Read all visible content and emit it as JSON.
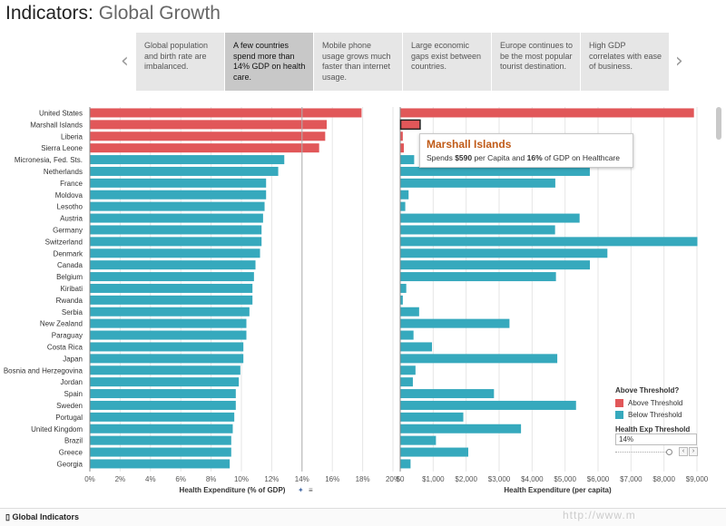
{
  "header": {
    "title_bold": "Indicators:",
    "title_light": "Global Growth"
  },
  "story": {
    "items": [
      {
        "label": "Global population and birth rate are imbalanced.",
        "active": false
      },
      {
        "label": "A few countries spend more than 14% GDP on health care.",
        "active": true
      },
      {
        "label": "Mobile phone usage grows much faster than internet usage.",
        "active": false
      },
      {
        "label": "Large economic gaps exist between countries.",
        "active": false
      },
      {
        "label": "Europe continues to be the most popular tourist destination.",
        "active": false
      },
      {
        "label": "High GDP correlates with ease of business.",
        "active": false
      }
    ]
  },
  "tooltip": {
    "title": "Marshall Islands",
    "pre": "Spends ",
    "value1": "$590",
    "mid": " per Capita and ",
    "value2": "16%",
    "post": " of GDP on Healthcare"
  },
  "legend": {
    "title": "Above Threshold?",
    "items": [
      {
        "label": "Above Threshold",
        "color": "#e15759"
      },
      {
        "label": "Below Threshold",
        "color": "#36a9bd"
      }
    ],
    "param_title": "Health Exp Threshold",
    "param_value": "14%"
  },
  "footer": {
    "workbook": "Global Indicators"
  },
  "watermark": "http://www.m",
  "colors": {
    "above": "#e15759",
    "below": "#36a9bd",
    "grid": "#e6e6e6"
  },
  "icons": {
    "prev": "chevron-left-icon",
    "next": "chevron-right-icon",
    "pin": "pin-icon",
    "sort": "sort-icon",
    "workbook": "book-icon"
  },
  "chart_data": [
    {
      "type": "bar",
      "orientation": "horizontal",
      "xlabel": "Health Expenditure (% of GDP)",
      "xlim": [
        0,
        20
      ],
      "ticks": [
        "0%",
        "2%",
        "4%",
        "6%",
        "8%",
        "10%",
        "12%",
        "14%",
        "16%",
        "18%",
        "20%"
      ],
      "reference_line": 14,
      "categories": [
        "United States",
        "Marshall Islands",
        "Liberia",
        "Sierra Leone",
        "Micronesia, Fed. Sts.",
        "Netherlands",
        "France",
        "Moldova",
        "Lesotho",
        "Austria",
        "Germany",
        "Switzerland",
        "Denmark",
        "Canada",
        "Belgium",
        "Kiribati",
        "Rwanda",
        "Serbia",
        "New Zealand",
        "Paraguay",
        "Costa Rica",
        "Japan",
        "Bosnia and Herzegovina",
        "Jordan",
        "Spain",
        "Sweden",
        "Portugal",
        "United Kingdom",
        "Brazil",
        "Greece",
        "Georgia"
      ],
      "values": [
        17.9,
        15.6,
        15.5,
        15.1,
        12.8,
        12.4,
        11.6,
        11.6,
        11.5,
        11.4,
        11.3,
        11.3,
        11.2,
        10.9,
        10.8,
        10.7,
        10.7,
        10.5,
        10.3,
        10.3,
        10.1,
        10.1,
        9.9,
        9.8,
        9.6,
        9.6,
        9.5,
        9.4,
        9.3,
        9.3,
        9.2
      ],
      "above_threshold": [
        true,
        true,
        true,
        true,
        false,
        false,
        false,
        false,
        false,
        false,
        false,
        false,
        false,
        false,
        false,
        false,
        false,
        false,
        false,
        false,
        false,
        false,
        false,
        false,
        false,
        false,
        false,
        false,
        false,
        false,
        false
      ]
    },
    {
      "type": "bar",
      "orientation": "horizontal",
      "xlabel": "Health Expenditure (per capita)",
      "xlim": [
        0,
        9000
      ],
      "ticks": [
        "$0",
        "$1,000",
        "$2,000",
        "$3,000",
        "$4,000",
        "$5,000",
        "$6,000",
        "$7,000",
        "$8,000",
        "$9,000"
      ],
      "categories": [
        "United States",
        "Marshall Islands",
        "Liberia",
        "Sierra Leone",
        "Micronesia, Fed. Sts.",
        "Netherlands",
        "France",
        "Moldova",
        "Lesotho",
        "Austria",
        "Germany",
        "Switzerland",
        "Denmark",
        "Canada",
        "Belgium",
        "Kiribati",
        "Rwanda",
        "Serbia",
        "New Zealand",
        "Paraguay",
        "Costa Rica",
        "Japan",
        "Bosnia and Herzegovina",
        "Jordan",
        "Spain",
        "Sweden",
        "Portugal",
        "United Kingdom",
        "Brazil",
        "Greece",
        "Georgia"
      ],
      "values": [
        8895,
        590,
        65,
        96,
        410,
        5737,
        4690,
        240,
        140,
        5427,
        4683,
        9000,
        6270,
        5740,
        4710,
        170,
        65,
        560,
        3300,
        390,
        950,
        4750,
        450,
        370,
        2830,
        5319,
        1900,
        3650,
        1070,
        2050,
        300
      ],
      "above_threshold": [
        true,
        true,
        true,
        true,
        false,
        false,
        false,
        false,
        false,
        false,
        false,
        false,
        false,
        false,
        false,
        false,
        false,
        false,
        false,
        false,
        false,
        false,
        false,
        false,
        false,
        false,
        false,
        false,
        false,
        false,
        false
      ],
      "highlighted": "Marshall Islands"
    }
  ]
}
